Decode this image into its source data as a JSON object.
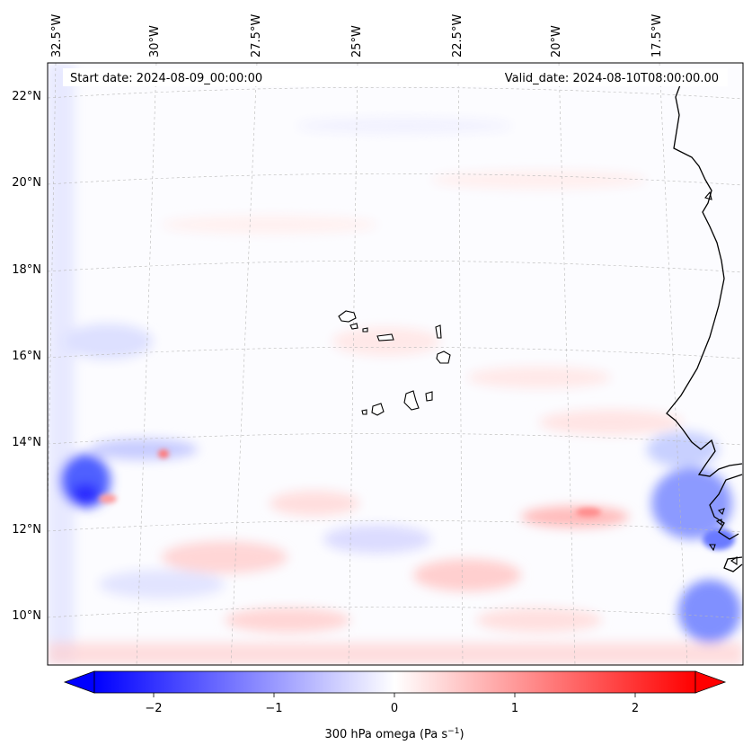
{
  "header": {
    "start_date": "Start date: 2024-08-09_00:00:00",
    "valid_date": "Valid_date: 2024-08-10T08:00:00.00"
  },
  "axes": {
    "lon_labels": [
      "32.5°W",
      "30°W",
      "27.5°W",
      "25°W",
      "22.5°W",
      "20°W",
      "17.5°W"
    ],
    "lat_labels": [
      "22°N",
      "20°N",
      "18°N",
      "16°N",
      "14°N",
      "12°N",
      "10°N"
    ]
  },
  "colorbar": {
    "ticks": [
      "−2",
      "−1",
      "0",
      "1",
      "2"
    ],
    "tick_values": [
      -2,
      -1,
      0,
      1,
      2
    ],
    "range": [
      -2.6,
      2.6
    ],
    "label": "300 hPa omega (Pa s",
    "label_sup": "−1",
    "label_end": ")",
    "colormap": "bwr",
    "colors": {
      "negative": "#0000ff",
      "zero": "#ffffff",
      "positive": "#ff0000"
    }
  },
  "map": {
    "projection": "conic",
    "features": [
      "coastline",
      "Cape Verde islands",
      "gridlines"
    ]
  }
}
